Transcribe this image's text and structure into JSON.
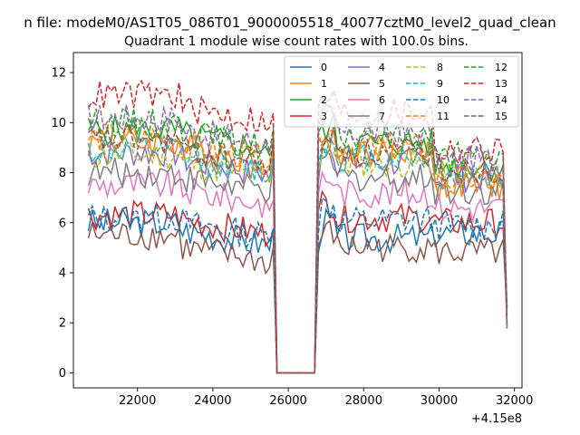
{
  "chart_data": {
    "type": "line",
    "suptitle": "n file: modeM0/AS1T05_086T01_9000005518_40077cztM0_level2_quad_clean",
    "title": "Quadrant 1 module wise count rates with 100.0s bins.",
    "xlabel": "",
    "ylabel": "",
    "x_offset_label": "+4.15e8",
    "xlim": [
      20300,
      32200
    ],
    "ylim": [
      -0.6,
      12.8
    ],
    "x_ticks": [
      22000,
      24000,
      26000,
      28000,
      30000,
      32000
    ],
    "x_tick_labels": [
      "22000",
      "24000",
      "26000",
      "28000",
      "30000",
      "32000"
    ],
    "y_ticks": [
      0,
      2,
      4,
      6,
      8,
      10,
      12
    ],
    "y_tick_labels": [
      "0",
      "2",
      "4",
      "6",
      "8",
      "10",
      "12"
    ],
    "x_start": 20700,
    "x_step": 100,
    "n_points": 112,
    "gap": {
      "after_index": 48,
      "zero_from": 25700,
      "zero_to": 26700,
      "resume_index": 62
    },
    "legend_position": "top-right",
    "series": [
      {
        "name": "0",
        "color": "#1f77b4",
        "dash": "solid",
        "base": 5.9,
        "segment_means": [
          6.0,
          5.7,
          5.4,
          5.6
        ]
      },
      {
        "name": "1",
        "color": "#ff7f0e",
        "dash": "solid",
        "base": 8.9,
        "segment_means": [
          9.2,
          9.0,
          8.8,
          7.5
        ]
      },
      {
        "name": "2",
        "color": "#2ca02c",
        "dash": "solid",
        "base": 9.6,
        "segment_means": [
          9.7,
          9.5,
          9.2,
          8.3
        ]
      },
      {
        "name": "3",
        "color": "#d62728",
        "dash": "solid",
        "base": 6.2,
        "segment_means": [
          6.3,
          6.1,
          6.2,
          6.0
        ]
      },
      {
        "name": "4",
        "color": "#9467bd",
        "dash": "solid",
        "base": 8.6,
        "segment_means": [
          8.8,
          8.5,
          8.4,
          7.8
        ]
      },
      {
        "name": "5",
        "color": "#8c564b",
        "dash": "solid",
        "base": 5.3,
        "segment_means": [
          5.5,
          5.0,
          5.0,
          4.8
        ]
      },
      {
        "name": "6",
        "color": "#e377c2",
        "dash": "solid",
        "base": 7.4,
        "segment_means": [
          7.5,
          7.3,
          7.2,
          6.6
        ]
      },
      {
        "name": "7",
        "color": "#7f7f7f",
        "dash": "solid",
        "base": 7.9,
        "segment_means": [
          8.0,
          7.8,
          7.8,
          7.3
        ]
      },
      {
        "name": "8",
        "color": "#bcbd22",
        "dash": "dashed",
        "base": 8.6,
        "segment_means": [
          8.7,
          8.4,
          8.4,
          7.9
        ]
      },
      {
        "name": "9",
        "color": "#17becf",
        "dash": "dashed",
        "base": 8.8,
        "segment_means": [
          8.9,
          8.6,
          8.6,
          7.9
        ]
      },
      {
        "name": "10",
        "color": "#1f77b4",
        "dash": "dashed",
        "base": 6.1,
        "segment_means": [
          6.2,
          6.0,
          6.1,
          5.9
        ]
      },
      {
        "name": "11",
        "color": "#ff7f0e",
        "dash": "dashed",
        "base": 9.3,
        "segment_means": [
          9.4,
          9.1,
          9.0,
          7.7
        ]
      },
      {
        "name": "12",
        "color": "#2ca02c",
        "dash": "dashed",
        "base": 9.9,
        "segment_means": [
          10.0,
          9.6,
          9.5,
          8.6
        ]
      },
      {
        "name": "13",
        "color": "#d62728",
        "dash": "dashed",
        "base": 11.0,
        "segment_means": [
          11.1,
          10.6,
          10.4,
          8.9
        ]
      },
      {
        "name": "14",
        "color": "#9467bd",
        "dash": "dashed",
        "base": 10.1,
        "segment_means": [
          10.2,
          9.7,
          9.6,
          8.5
        ]
      },
      {
        "name": "15",
        "color": "#8c564b",
        "dash": "dashed",
        "base": 9.2,
        "segment_means": [
          9.3,
          8.9,
          8.8,
          8.2
        ]
      }
    ]
  }
}
